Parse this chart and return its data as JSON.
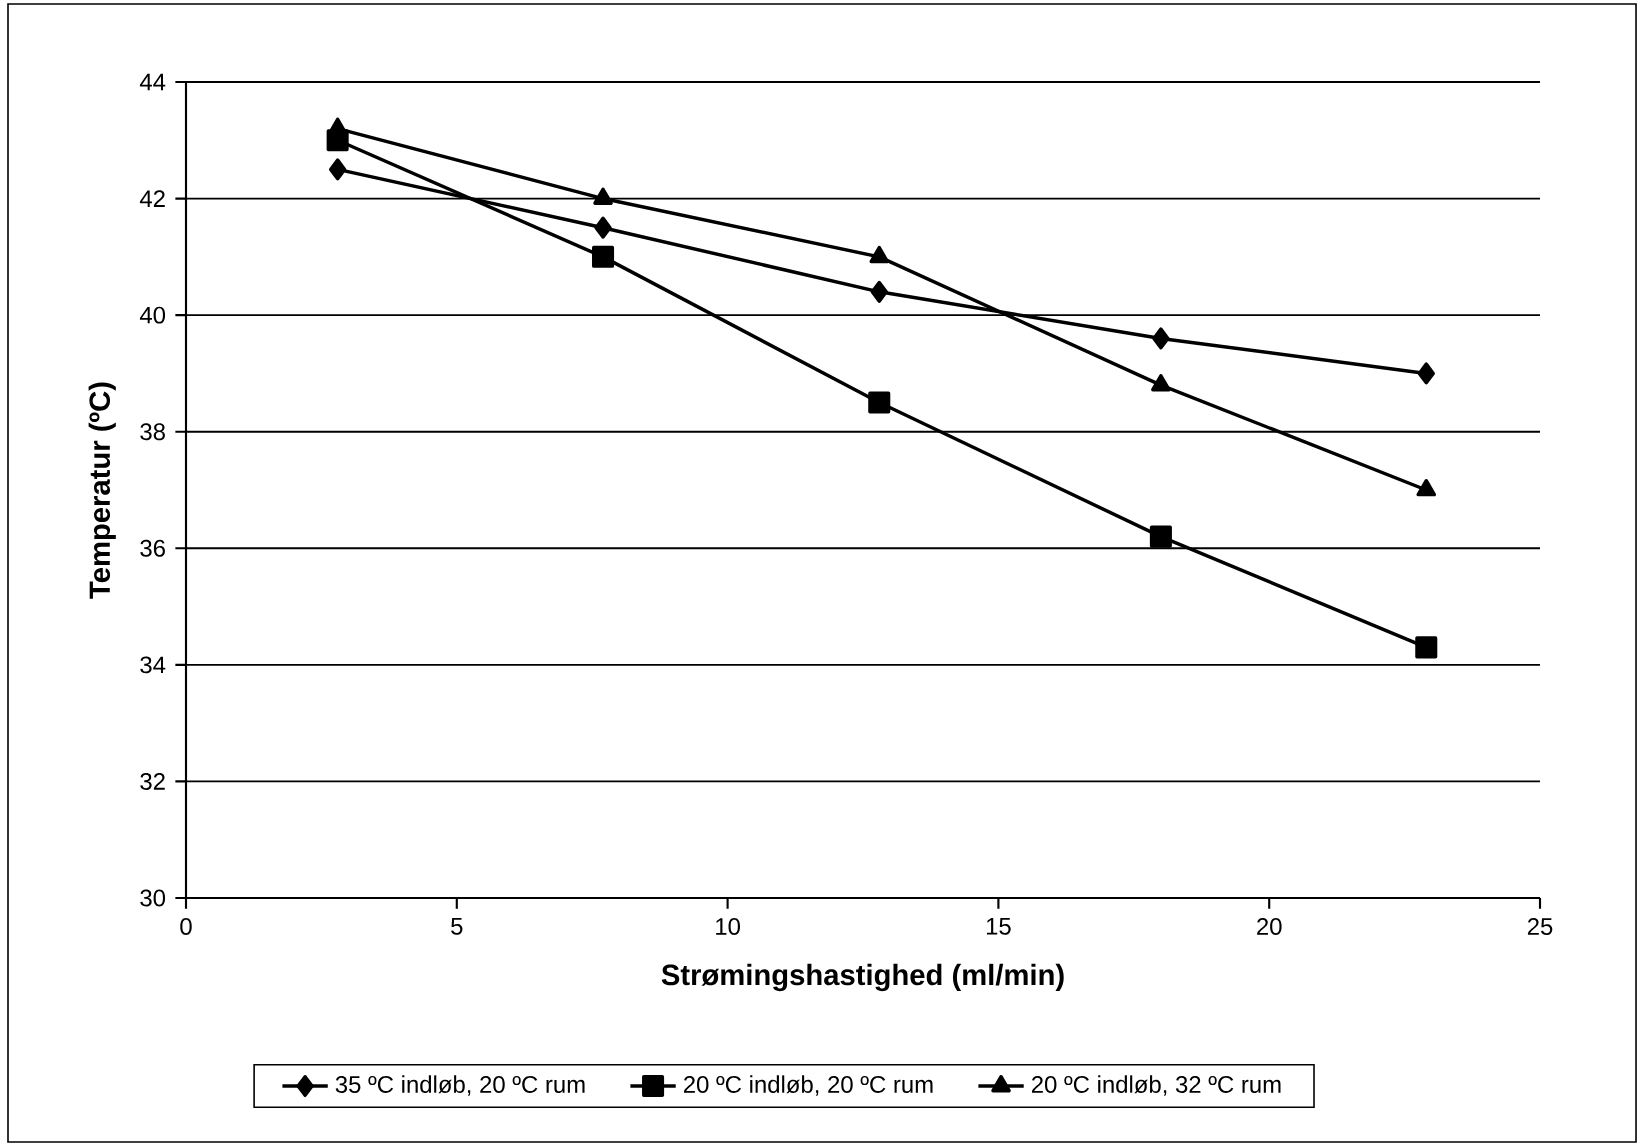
{
  "chart_data": {
    "type": "line",
    "xlabel": "Strømingshastighed (ml/min)",
    "ylabel": "Temperatur (ºC)",
    "x": [
      2.8,
      7.7,
      12.8,
      18.0,
      22.9
    ],
    "series": [
      {
        "name": "35 ºC indløb, 20 ºC rum",
        "color": "#000000",
        "marker": "diamond",
        "values": [
          42.5,
          41.5,
          40.4,
          39.6,
          39.0
        ]
      },
      {
        "name": "20 ºC indløb, 20 ºC rum",
        "color": "#000000",
        "marker": "square",
        "values": [
          43.0,
          41.0,
          38.5,
          36.2,
          34.3
        ]
      },
      {
        "name": "20 ºC indløb, 32 ºC rum",
        "color": "#000000",
        "marker": "triangle",
        "values": [
          43.2,
          42.0,
          41.0,
          38.8,
          37.0
        ]
      }
    ],
    "xlim": [
      0,
      25
    ],
    "xticks": [
      0,
      5,
      10,
      15,
      20,
      25
    ],
    "ylim": [
      30,
      44
    ],
    "yticks": [
      30,
      32,
      34,
      36,
      38,
      40,
      42,
      44
    ],
    "grid": "y",
    "legend": "bottom",
    "line_style": "solid"
  }
}
